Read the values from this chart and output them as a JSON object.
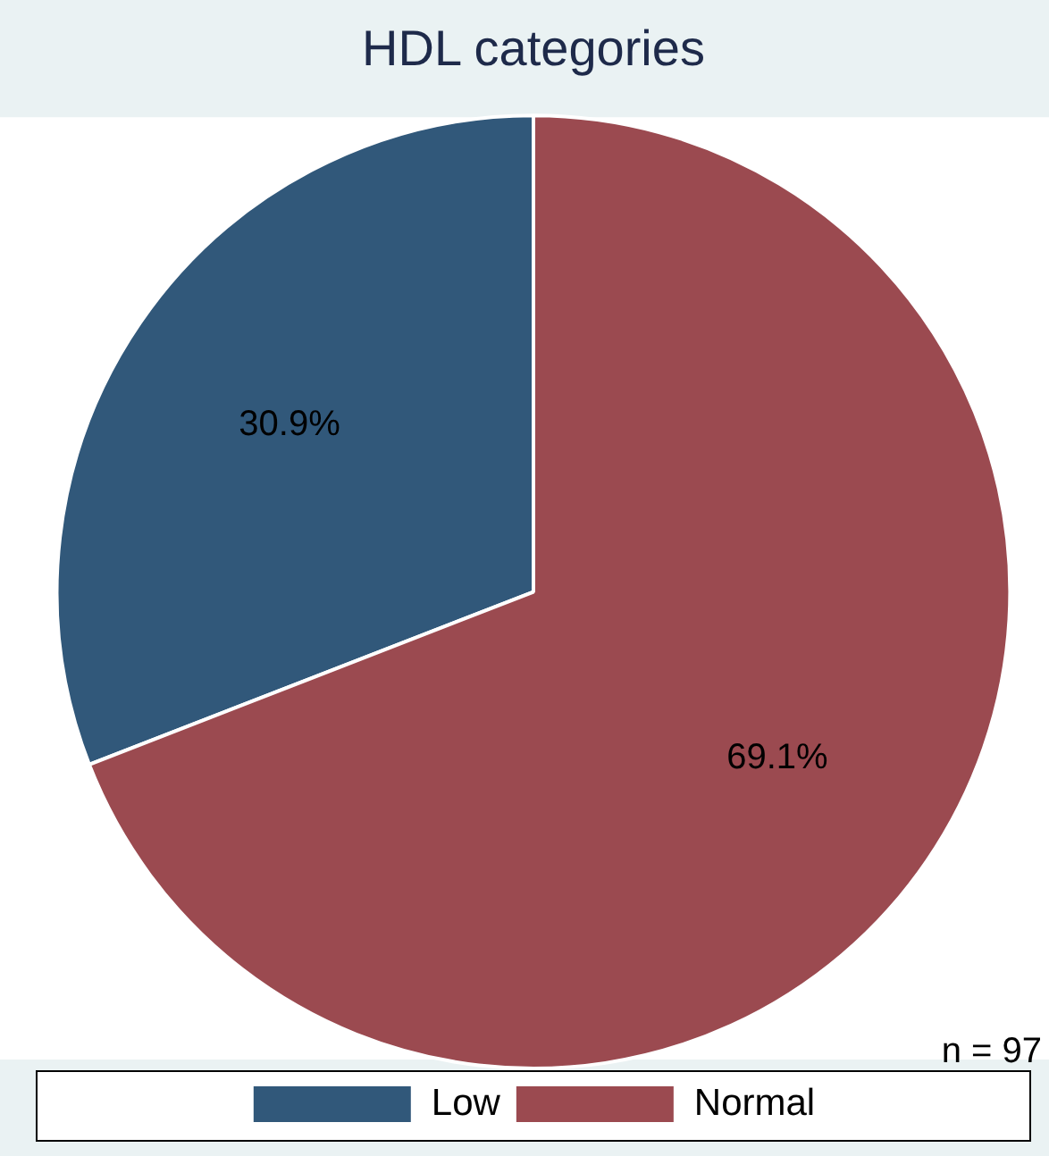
{
  "chart_data": {
    "type": "pie",
    "title": "HDL categories",
    "categories": [
      "Low",
      "Normal"
    ],
    "values": [
      30.9,
      69.1
    ],
    "colors": [
      "#31587a",
      "#9b4a50"
    ],
    "value_labels": [
      "30.9%",
      "69.1%"
    ],
    "legend": "bottom",
    "annotations": [
      "n = 97"
    ]
  }
}
